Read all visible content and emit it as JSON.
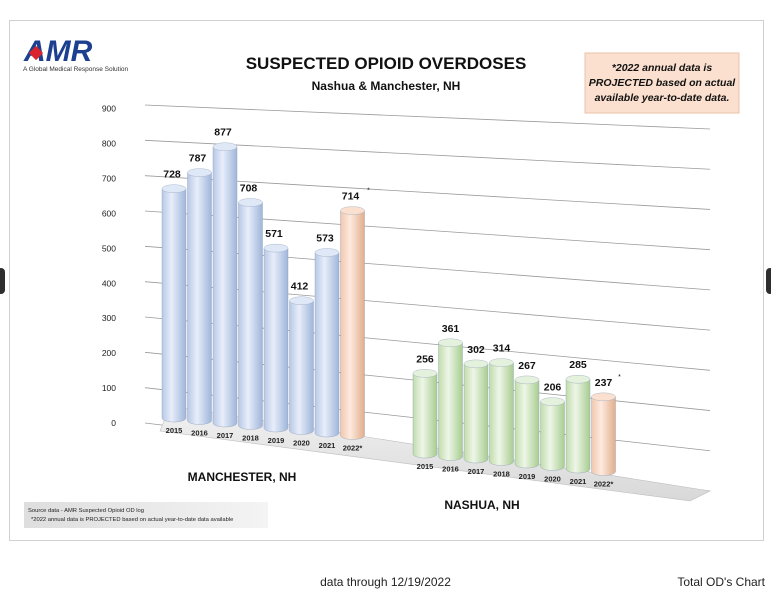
{
  "logo": {
    "text": "AMR",
    "tagline": "A Global Medical Response Solution"
  },
  "projection_note": {
    "lines": [
      "*2022 annual data is",
      "PROJECTED based on actual",
      "available year-to-date data."
    ]
  },
  "source_note": {
    "line1": "Source data - AMR Suspected Opioid OD log",
    "line2": "*2022 annual data is PROJECTED based on actual year-to-date data available"
  },
  "footer": {
    "left": "data through 12/19/2022",
    "right": "Total OD's Chart"
  },
  "colors": {
    "actual_top": "#dfe8f6",
    "actual_bottom": "#a9bedf",
    "nashua_top": "#e4f1dc",
    "nashua_bottom": "#b1d49b",
    "projected_top": "#fbe0cf",
    "projected_bottom": "#e8b99a"
  },
  "chart_data": {
    "type": "bar",
    "title": "SUSPECTED OPIOID OVERDOSES",
    "subtitle": "Nashua & Manchester, NH",
    "ylim": [
      0,
      900
    ],
    "yticks": [
      "0",
      "100",
      "200",
      "300",
      "400",
      "500",
      "600",
      "700",
      "800",
      "900"
    ],
    "grid": true,
    "groups": [
      {
        "name": "MANCHESTER, NH",
        "categories": [
          "2015",
          "2016",
          "2017",
          "2018",
          "2019",
          "2020",
          "2021",
          "2022*"
        ],
        "values": [
          728,
          787,
          877,
          708,
          571,
          412,
          573,
          714
        ],
        "value_labels": [
          "728",
          "787",
          "877",
          "708",
          "571",
          "412",
          "573",
          "714"
        ],
        "projected": [
          false,
          false,
          false,
          false,
          false,
          false,
          false,
          true
        ]
      },
      {
        "name": "NASHUA, NH",
        "categories": [
          "2015",
          "2016",
          "2017",
          "2018",
          "2019",
          "2020",
          "2021",
          "2022*"
        ],
        "values": [
          256,
          361,
          302,
          314,
          267,
          206,
          285,
          237
        ],
        "value_labels": [
          "256",
          "361",
          "302",
          "314",
          "267",
          "206",
          "285",
          "237"
        ],
        "projected": [
          false,
          false,
          false,
          false,
          false,
          false,
          false,
          true
        ]
      }
    ]
  }
}
